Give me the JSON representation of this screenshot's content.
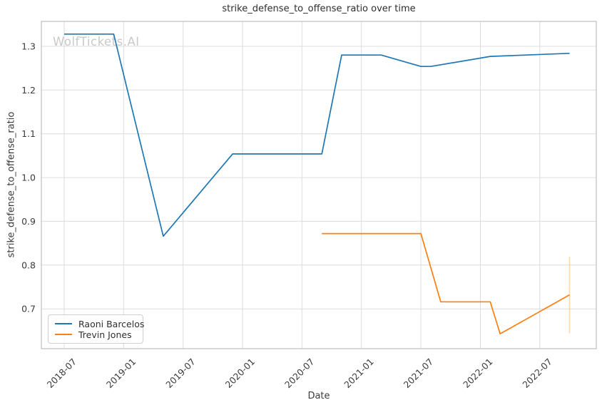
{
  "watermark": "WolfTickets.AI",
  "chart_data": {
    "type": "line",
    "title": "strike_defense_to_offense_ratio over time",
    "xlabel": "Date",
    "ylabel": "strike_defense_to_offense_ratio",
    "grid": true,
    "legend_position": "lower left",
    "x_axis": {
      "ticks": [
        "2018-07",
        "2019-01",
        "2019-07",
        "2020-01",
        "2020-07",
        "2021-01",
        "2021-07",
        "2022-01",
        "2022-07"
      ],
      "domain_months_since_first_tick": [
        -2.3,
        53.7
      ]
    },
    "y_axis": {
      "ticks": [
        0.7,
        0.8,
        0.9,
        1.0,
        1.1,
        1.2,
        1.3
      ],
      "domain": [
        0.609,
        1.357
      ]
    },
    "series": [
      {
        "name": "Raoni Barcelos",
        "color": "#1f77b4",
        "points": [
          [
            "2018-07",
            1.328
          ],
          [
            "2018-12",
            1.328
          ],
          [
            "2019-05",
            0.866
          ],
          [
            "2019-12",
            1.054
          ],
          [
            "2020-09",
            1.054
          ],
          [
            "2020-11",
            1.28
          ],
          [
            "2021-03",
            1.28
          ],
          [
            "2021-07",
            1.254
          ],
          [
            "2021-08",
            1.254
          ],
          [
            "2022-02",
            1.277
          ],
          [
            "2022-10",
            1.284
          ]
        ]
      },
      {
        "name": "Trevin Jones",
        "color": "#ff7f0e",
        "points": [
          [
            "2020-09",
            0.872
          ],
          [
            "2021-07",
            0.872
          ],
          [
            "2021-09",
            0.716
          ],
          [
            "2022-02",
            0.716
          ],
          [
            "2022-03",
            0.643
          ],
          [
            "2022-10",
            0.732
          ]
        ],
        "error_bars": [
          {
            "date": "2022-10",
            "low": 0.644,
            "high": 0.819
          }
        ]
      }
    ],
    "style": {
      "grid_color": "#dcdcdc",
      "spine_color": "#bdbdbd",
      "tick_color": "#3b3b3b",
      "title_color": "#2e2e2e",
      "watermark_color": "#c9c9c9",
      "background": "#ffffff"
    }
  }
}
